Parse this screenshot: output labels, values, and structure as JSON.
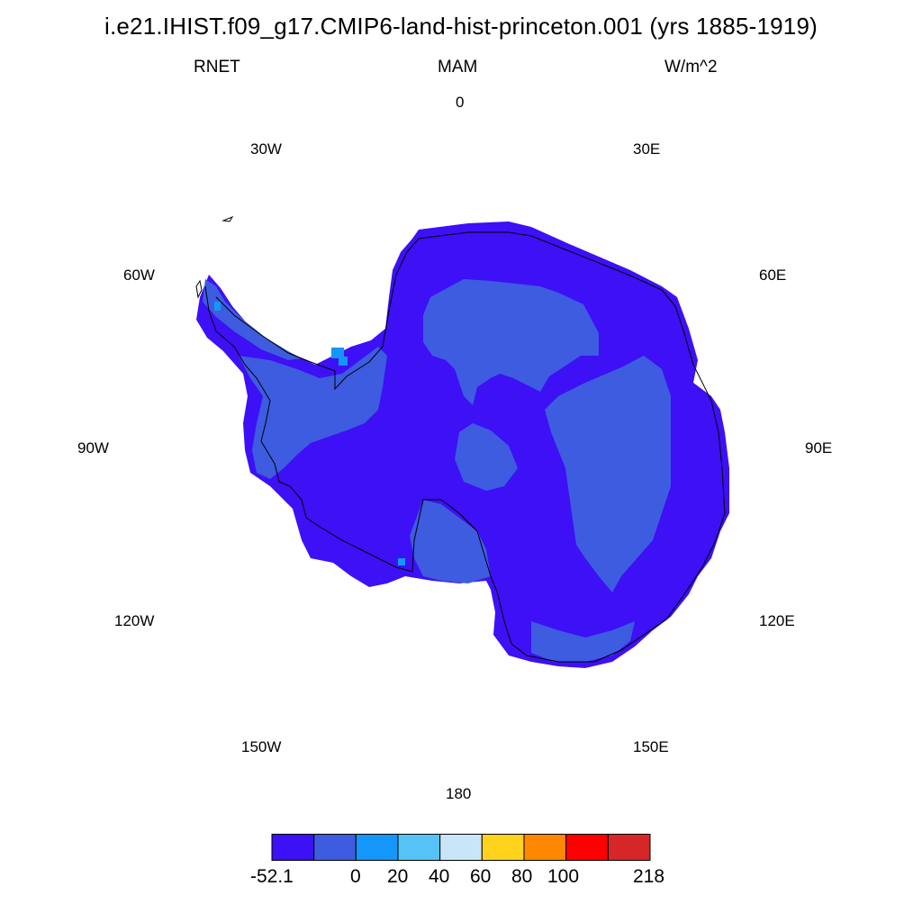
{
  "title": "i.e21.IHIST.f09_g17.CMIP6-land-hist-princeton.001 (yrs 1885-1919)",
  "subtitle": {
    "left": "RNET",
    "center": "MAM",
    "right": "W/m^2"
  },
  "longitude_labels": {
    "lon_0": "0",
    "lon_30e": "30E",
    "lon_60e": "60E",
    "lon_90e": "90E",
    "lon_120e": "120E",
    "lon_150e": "150E",
    "lon_180": "180",
    "lon_150w": "150W",
    "lon_120w": "120W",
    "lon_90w": "90W",
    "lon_60w": "60W",
    "lon_30w": "30W"
  },
  "colorbar": {
    "colors": [
      "#3d10f5",
      "#3d5ce0",
      "#1596fa",
      "#55c3f5",
      "#c8e6f7",
      "#ffd21e",
      "#ff8800",
      "#ff0000",
      "#d62728"
    ],
    "labels": [
      "-52.1",
      "0",
      "20",
      "40",
      "60",
      "80",
      "100",
      "218"
    ]
  },
  "map": {
    "projection": "south-polar-stereographic",
    "region": "Antarctica",
    "fill_colors": {
      "base": "#3d10f5",
      "mid": "#3d5ce0",
      "high": "#1596fa"
    }
  }
}
